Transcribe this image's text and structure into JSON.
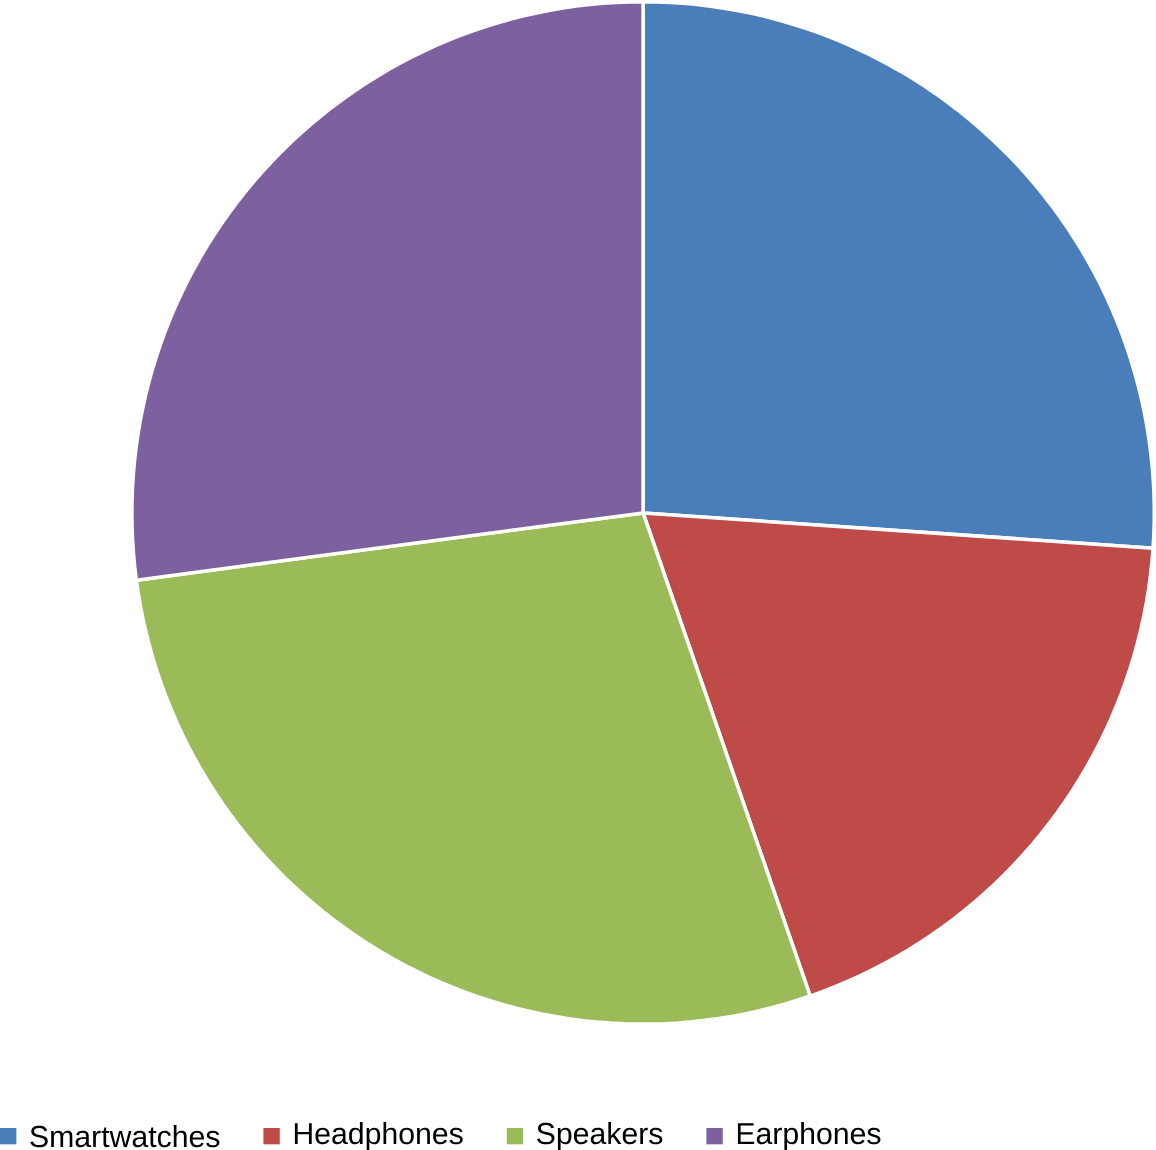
{
  "chart_data": {
    "type": "pie",
    "categories": [
      "Smartwatches",
      "Headphones",
      "Speakers",
      "Earphones"
    ],
    "values": [
      26.1,
      18.6,
      28.2,
      27.1
    ],
    "colors": [
      "#4a7ebb",
      "#be4b48",
      "#9bbb59",
      "#7d60a0"
    ],
    "legend": "bottom"
  }
}
